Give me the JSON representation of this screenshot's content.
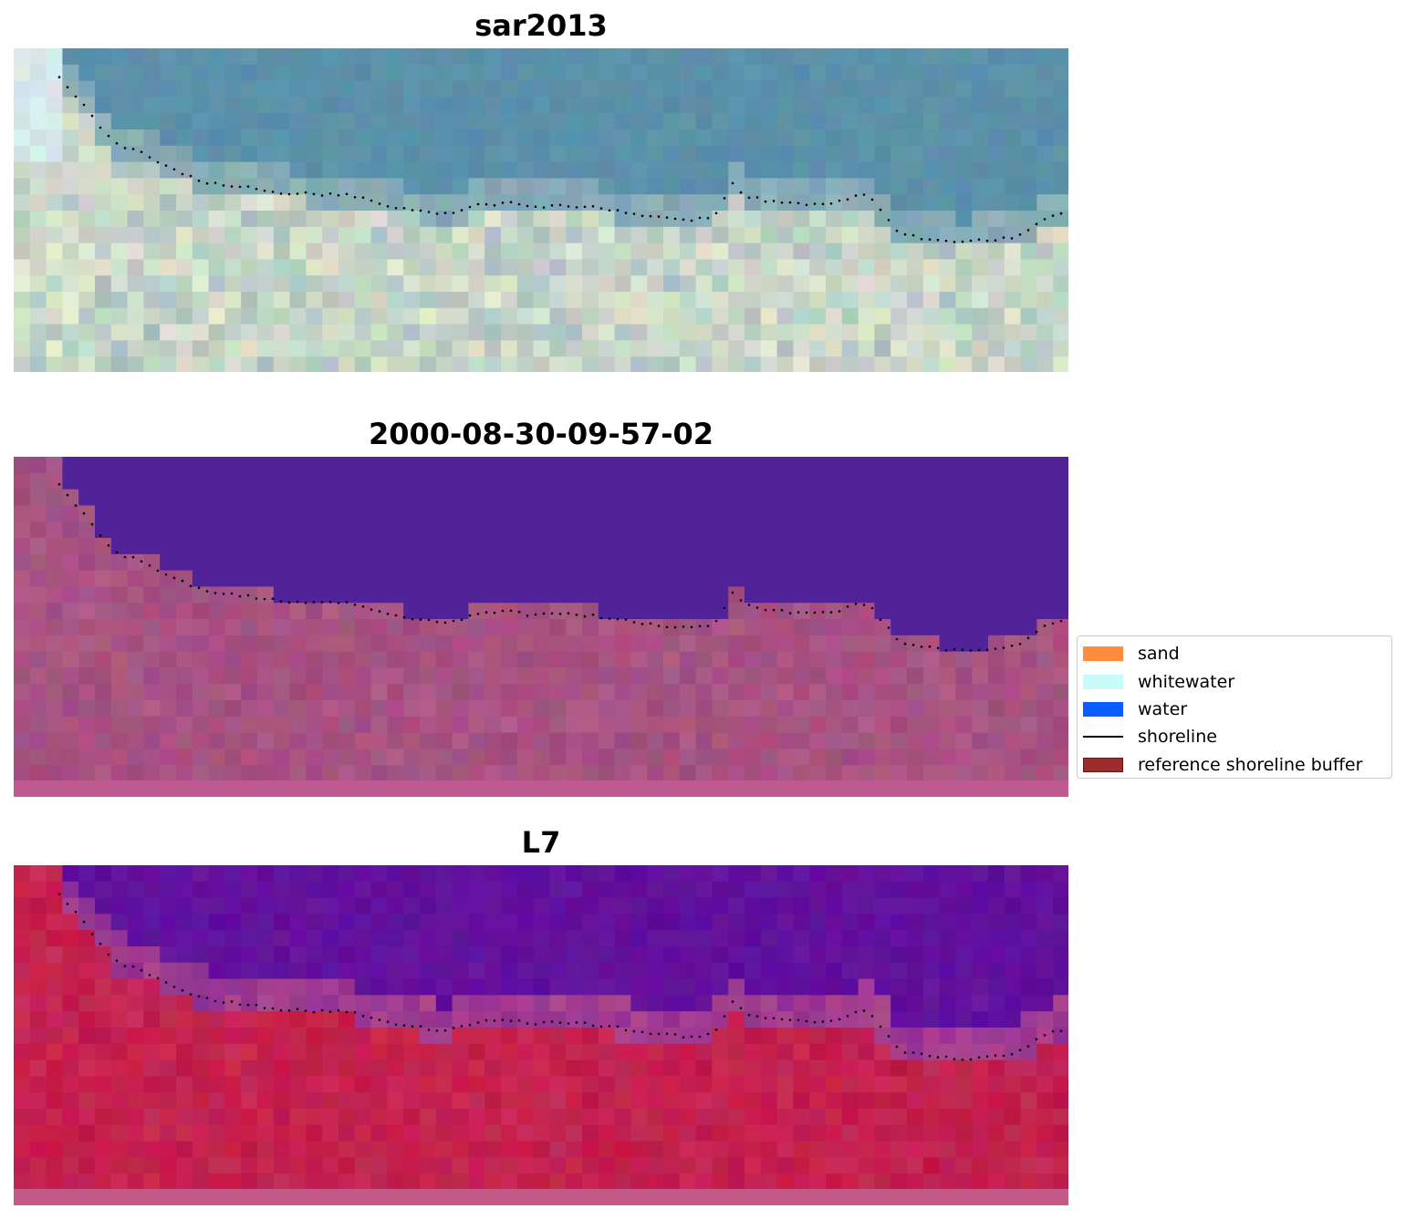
{
  "panels": [
    {
      "id": "sar",
      "title": "sar2013",
      "style": "rgb"
    },
    {
      "id": "classified",
      "title": "2000-08-30-09-57-02",
      "style": "classified"
    },
    {
      "id": "ndwi",
      "title": "L7",
      "style": "index"
    }
  ],
  "colors": {
    "rgb_water": "#5a8fab",
    "rgb_sand": "#dfe6cf",
    "classified_water": "#522298",
    "classified_land": "#a2507e",
    "classified_bottom": "#bf5b92",
    "index_water": "#5f0f9c",
    "index_land": "#c21a48",
    "index_transition": "#b0468e",
    "index_bottom": "#c45a88",
    "shoreline_points": "#000000"
  },
  "legend": {
    "items": [
      {
        "label": "sand",
        "kind": "patch",
        "color": "#ff8c3f"
      },
      {
        "label": "whitewater",
        "kind": "patch",
        "color": "#c8fcfb"
      },
      {
        "label": "water",
        "kind": "patch",
        "color": "#0a5cfd"
      },
      {
        "label": "shoreline",
        "kind": "line",
        "color": "#000000"
      },
      {
        "label": "reference shoreline buffer",
        "kind": "patch",
        "color": "#9b2d2d"
      }
    ]
  }
}
